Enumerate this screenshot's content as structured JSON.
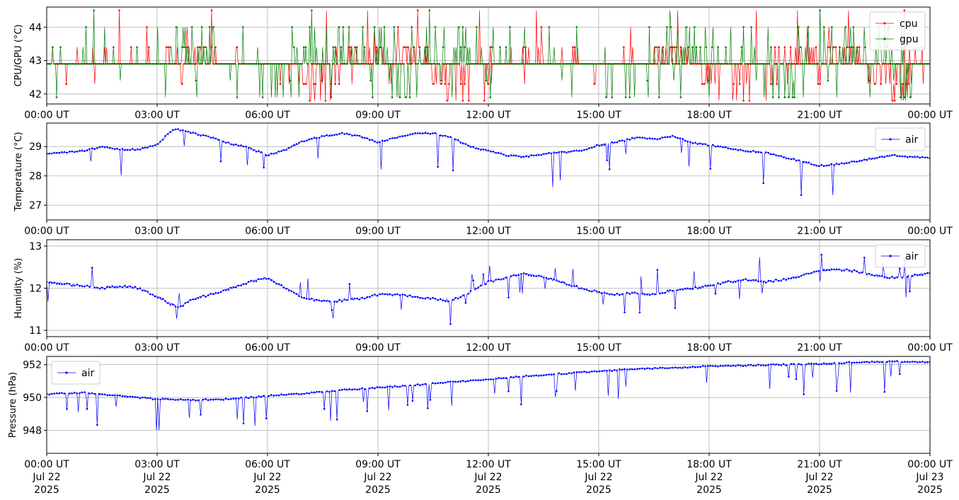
{
  "chart_data": [
    {
      "type": "line",
      "ylabel": "CPU/GPU (°C)",
      "ylim": [
        41.7,
        44.6
      ],
      "yticks": [
        42,
        43,
        44
      ],
      "x_tick_labels": [
        "00:00 UT",
        "03:00 UT",
        "06:00 UT",
        "09:00 UT",
        "12:00 UT",
        "15:00 UT",
        "18:00 UT",
        "21:00 UT",
        "00:00 UT"
      ],
      "grid": true,
      "legend_position": "top-right",
      "series": [
        {
          "name": "cpu",
          "color": "#ff0000",
          "baseline": 42.9,
          "values": [
            43.4,
            42.3,
            43.4,
            42.9,
            43.4,
            42.3,
            43.4,
            43.4,
            42.9,
            44.5,
            43.4,
            44.0,
            43.4,
            42.9,
            43.4,
            43.4,
            43.4,
            43.4,
            42.9,
            42.3,
            42.3,
            42.9,
            42.9,
            43.4,
            44.0,
            43.4,
            43.4,
            43.4,
            43.4,
            43.4,
            42.9,
            43.4,
            43.4,
            43.4,
            43.4,
            43.4,
            44.5,
            43.4,
            43.4,
            42.9,
            43.4,
            43.4,
            42.9,
            42.9,
            42.9,
            42.9,
            42.3,
            42.3,
            42.3,
            42.3,
            42.3,
            42.3,
            42.3,
            42.3,
            41.8,
            41.8,
            42.3,
            41.8,
            42.3,
            41.8,
            42.3,
            41.8,
            44.5,
            41.8,
            42.3,
            42.3
          ]
        },
        {
          "name": "gpu",
          "color": "#008000",
          "baseline": 42.9,
          "values": [
            43.4,
            41.9,
            43.4,
            42.9,
            43.4,
            44.0,
            42.9,
            44.5,
            44.0,
            43.4,
            42.9,
            42.4,
            43.4,
            44.0,
            42.9,
            41.9,
            43.4,
            43.4,
            44.0,
            44.0,
            43.4,
            44.0,
            43.4,
            44.0,
            43.4,
            43.4,
            42.9,
            44.0,
            43.4,
            42.9,
            42.4,
            41.9,
            43.4,
            44.0,
            43.4,
            43.4,
            44.0,
            43.4,
            44.0,
            44.0,
            43.4,
            42.4,
            42.9,
            41.9,
            44.0,
            43.4,
            41.9,
            41.9,
            41.9,
            41.9,
            41.9,
            41.9,
            42.4,
            41.9,
            44.0,
            43.4,
            43.4
          ]
        }
      ]
    },
    {
      "type": "line",
      "ylabel": "Temperature (°C)",
      "ylim": [
        26.5,
        29.8
      ],
      "yticks": [
        27,
        28,
        29
      ],
      "x_tick_labels": [
        "00:00 UT",
        "03:00 UT",
        "06:00 UT",
        "09:00 UT",
        "12:00 UT",
        "15:00 UT",
        "18:00 UT",
        "21:00 UT",
        "00:00 UT"
      ],
      "grid": true,
      "legend_position": "top-right",
      "series": [
        {
          "name": "air",
          "color": "#0000ff",
          "hours": [
            0,
            0.5,
            1,
            1.5,
            2,
            2.5,
            3,
            3.3,
            3.5,
            4,
            4.5,
            5,
            5.5,
            6,
            6.5,
            7,
            7.5,
            8,
            8.5,
            9,
            9.5,
            10,
            10.5,
            11,
            11.5,
            12,
            12.5,
            13,
            13.5,
            14,
            14.5,
            15,
            15.5,
            16,
            16.5,
            17,
            17.5,
            18,
            18.5,
            19,
            19.5,
            20,
            20.5,
            21,
            21.5,
            22,
            22.5,
            23,
            23.5,
            24
          ],
          "values": [
            28.75,
            28.8,
            28.85,
            29.0,
            28.9,
            28.9,
            29.05,
            29.45,
            29.6,
            29.45,
            29.3,
            29.1,
            28.95,
            28.7,
            28.9,
            29.2,
            29.35,
            29.45,
            29.35,
            29.15,
            29.3,
            29.45,
            29.45,
            29.3,
            29.0,
            28.85,
            28.7,
            28.65,
            28.75,
            28.8,
            28.85,
            29.05,
            29.15,
            29.3,
            29.25,
            29.35,
            29.15,
            29.05,
            28.95,
            28.85,
            28.8,
            28.65,
            28.5,
            28.35,
            28.4,
            28.5,
            28.6,
            28.7,
            28.65,
            28.6
          ]
        }
      ]
    },
    {
      "type": "line",
      "ylabel": "Humidity (%)",
      "ylim": [
        10.85,
        13.15
      ],
      "yticks": [
        11,
        12,
        13
      ],
      "x_tick_labels": [
        "00:00 UT",
        "03:00 UT",
        "06:00 UT",
        "09:00 UT",
        "12:00 UT",
        "15:00 UT",
        "18:00 UT",
        "21:00 UT",
        "00:00 UT"
      ],
      "grid": true,
      "legend_position": "top-right",
      "series": [
        {
          "name": "air",
          "color": "#0000ff",
          "hours": [
            0,
            0.5,
            1,
            1.5,
            2,
            2.5,
            3,
            3.3,
            3.6,
            4,
            4.5,
            5,
            5.5,
            6,
            6.5,
            7,
            7.5,
            8,
            8.5,
            9,
            9.5,
            10,
            10.5,
            11,
            11.5,
            12,
            12.5,
            13,
            13.5,
            14,
            14.5,
            15,
            15.5,
            16,
            16.5,
            17,
            17.5,
            18,
            18.5,
            19,
            19.5,
            20,
            20.5,
            21,
            21.5,
            22,
            22.5,
            23,
            23.5,
            24
          ],
          "values": [
            12.15,
            12.1,
            12.05,
            12.0,
            12.05,
            12.0,
            11.8,
            11.65,
            11.55,
            11.75,
            11.85,
            12.0,
            12.15,
            12.25,
            12.0,
            11.75,
            11.7,
            11.7,
            11.75,
            11.85,
            11.85,
            11.8,
            11.75,
            11.7,
            11.9,
            12.15,
            12.25,
            12.35,
            12.25,
            12.15,
            12.0,
            11.9,
            11.85,
            11.9,
            11.85,
            11.95,
            12.0,
            12.05,
            12.15,
            12.2,
            12.15,
            12.2,
            12.3,
            12.4,
            12.45,
            12.4,
            12.3,
            12.25,
            12.3,
            12.35
          ]
        }
      ]
    },
    {
      "type": "line",
      "ylabel": "Pressure (hPa)",
      "ylim": [
        946.6,
        952.5
      ],
      "yticks": [
        948,
        950,
        952
      ],
      "x_tick_labels": [
        "00:00 UT",
        "03:00 UT",
        "06:00 UT",
        "09:00 UT",
        "12:00 UT",
        "15:00 UT",
        "18:00 UT",
        "21:00 UT",
        "00:00 UT"
      ],
      "x_date_labels": [
        [
          "Jul 22",
          "2025"
        ],
        [
          "Jul 22",
          "2025"
        ],
        [
          "Jul 22",
          "2025"
        ],
        [
          "Jul 22",
          "2025"
        ],
        [
          "Jul 22",
          "2025"
        ],
        [
          "Jul 22",
          "2025"
        ],
        [
          "Jul 22",
          "2025"
        ],
        [
          "Jul 22",
          "2025"
        ],
        [
          "Jul 23",
          "2025"
        ]
      ],
      "grid": true,
      "legend_position": "top-left",
      "series": [
        {
          "name": "air",
          "color": "#0000ff",
          "hours": [
            0,
            1,
            2,
            3,
            4,
            5,
            6,
            7,
            8,
            9,
            10,
            11,
            12,
            13,
            14,
            15,
            16,
            17,
            18,
            19,
            20,
            21,
            22,
            23,
            24
          ],
          "values": [
            950.2,
            950.3,
            950.1,
            949.9,
            949.85,
            949.9,
            950.1,
            950.25,
            950.45,
            950.6,
            950.75,
            950.95,
            951.1,
            951.3,
            951.45,
            951.6,
            951.75,
            951.8,
            951.9,
            951.95,
            952.0,
            952.05,
            952.15,
            952.2,
            952.15
          ]
        }
      ]
    }
  ]
}
